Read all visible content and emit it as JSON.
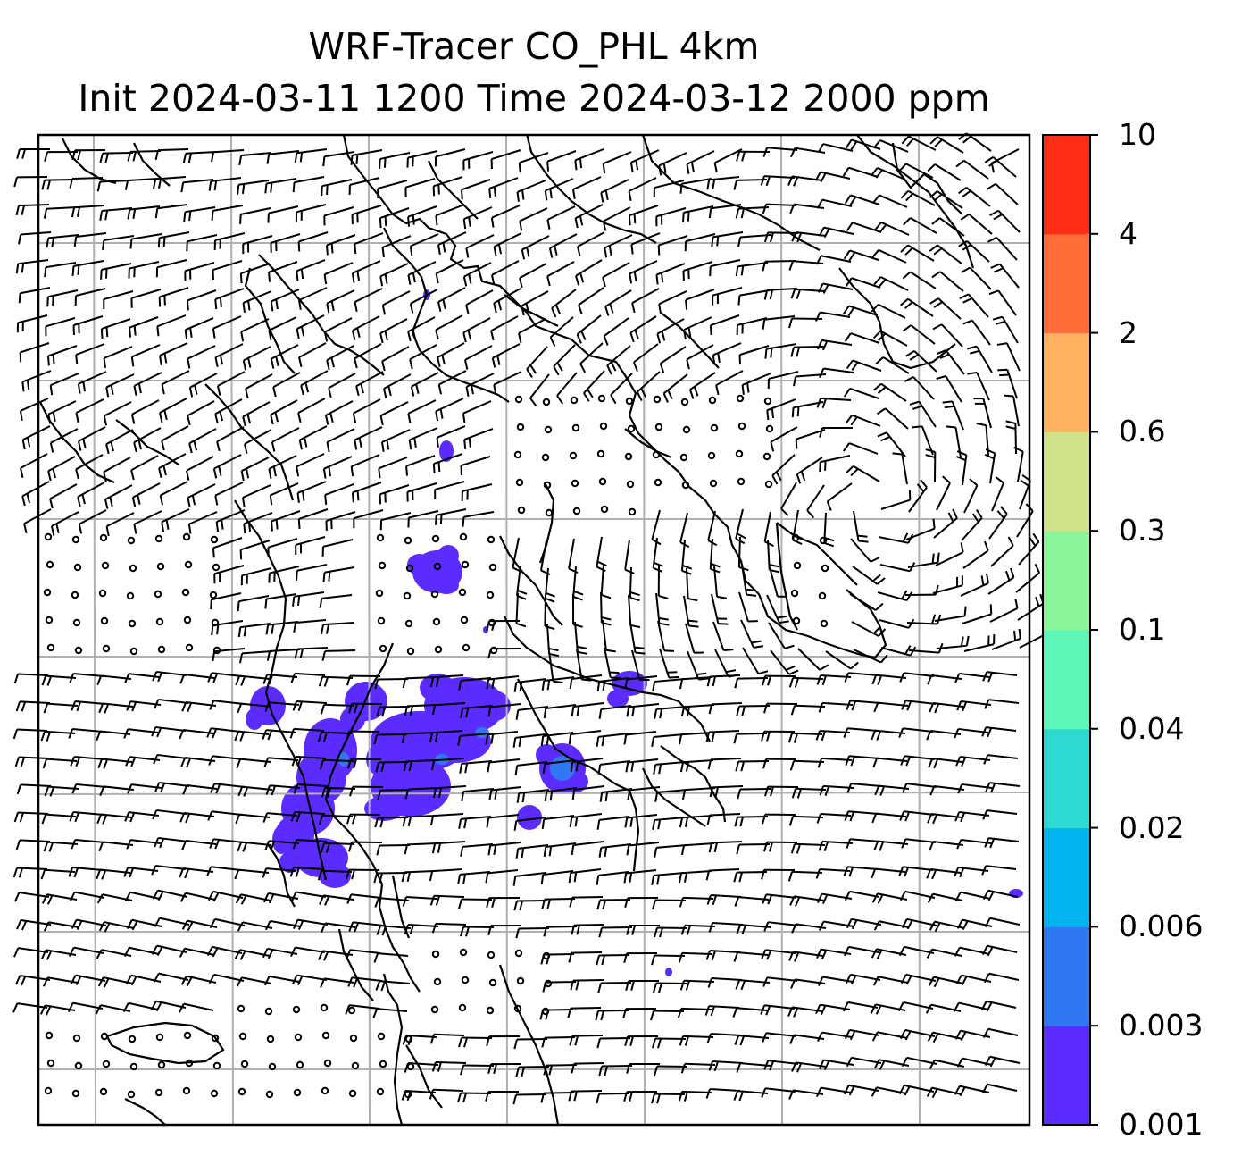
{
  "title": {
    "line1": "WRF-Tracer CO_PHL 4km",
    "line2": "Init 2024-03-11 1200 Time 2024-03-12 2000 ppm"
  },
  "colorbar": {
    "labels": [
      "0.001",
      "0.003",
      "0.006",
      "0.02",
      "0.04",
      "0.1",
      "0.3",
      "0.6",
      "2",
      "4",
      "10"
    ],
    "colors": [
      "#5b2bff",
      "#3277f2",
      "#01b3ee",
      "#2ed9d2",
      "#5ef5b8",
      "#8cf59a",
      "#cfe189",
      "#ffb15f",
      "#ff6d38",
      "#ff2d16"
    ]
  },
  "map": {
    "coastline_color": "#000000",
    "gridline_color": "#b0b0b0",
    "barb_color": "#000000",
    "plume_color": "#5b2bff",
    "plume_core_color": "#3277f2"
  }
}
